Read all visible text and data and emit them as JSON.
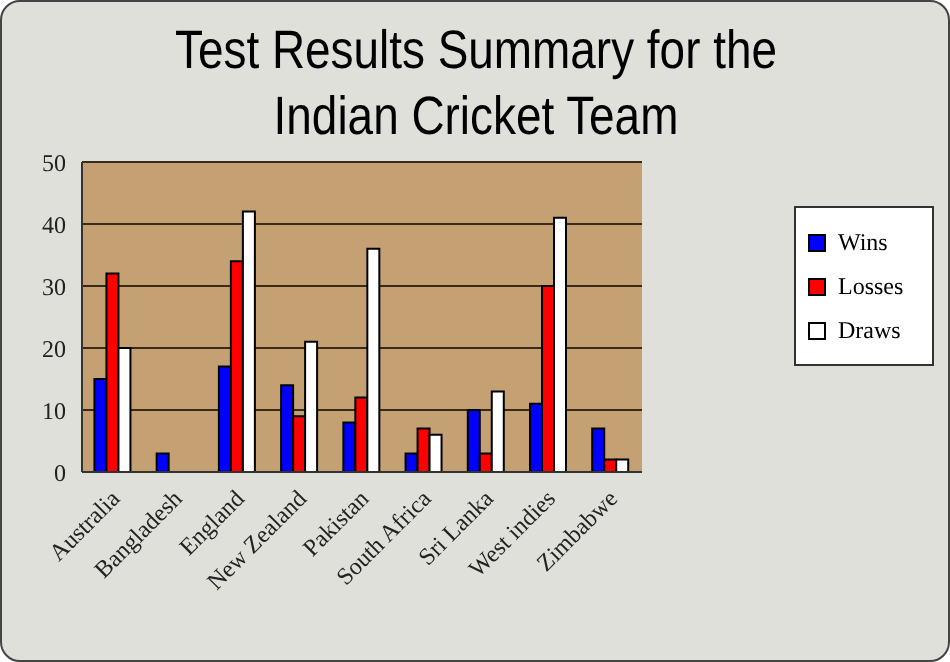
{
  "chart_data": {
    "type": "bar",
    "title": "Test Results Summary for the Indian Cricket Team",
    "categories": [
      "Australia",
      "Bangladesh",
      "England",
      "New Zealand",
      "Pakistan",
      "South Africa",
      "Sri Lanka",
      "West indies",
      "Zimbabwe"
    ],
    "series": [
      {
        "name": "Wins",
        "color": "#0000ff",
        "values": [
          15,
          3,
          17,
          14,
          8,
          3,
          10,
          11,
          7
        ]
      },
      {
        "name": "Losses",
        "color": "#ff0000",
        "values": [
          32,
          0,
          34,
          9,
          12,
          7,
          3,
          30,
          2
        ]
      },
      {
        "name": "Draws",
        "color": "#ffffff",
        "values": [
          20,
          0,
          42,
          21,
          36,
          6,
          13,
          41,
          2
        ]
      }
    ],
    "ylim": [
      0,
      50
    ],
    "yticks": [
      0,
      10,
      20,
      30,
      40,
      50
    ],
    "grid": "y",
    "legend": "right"
  }
}
